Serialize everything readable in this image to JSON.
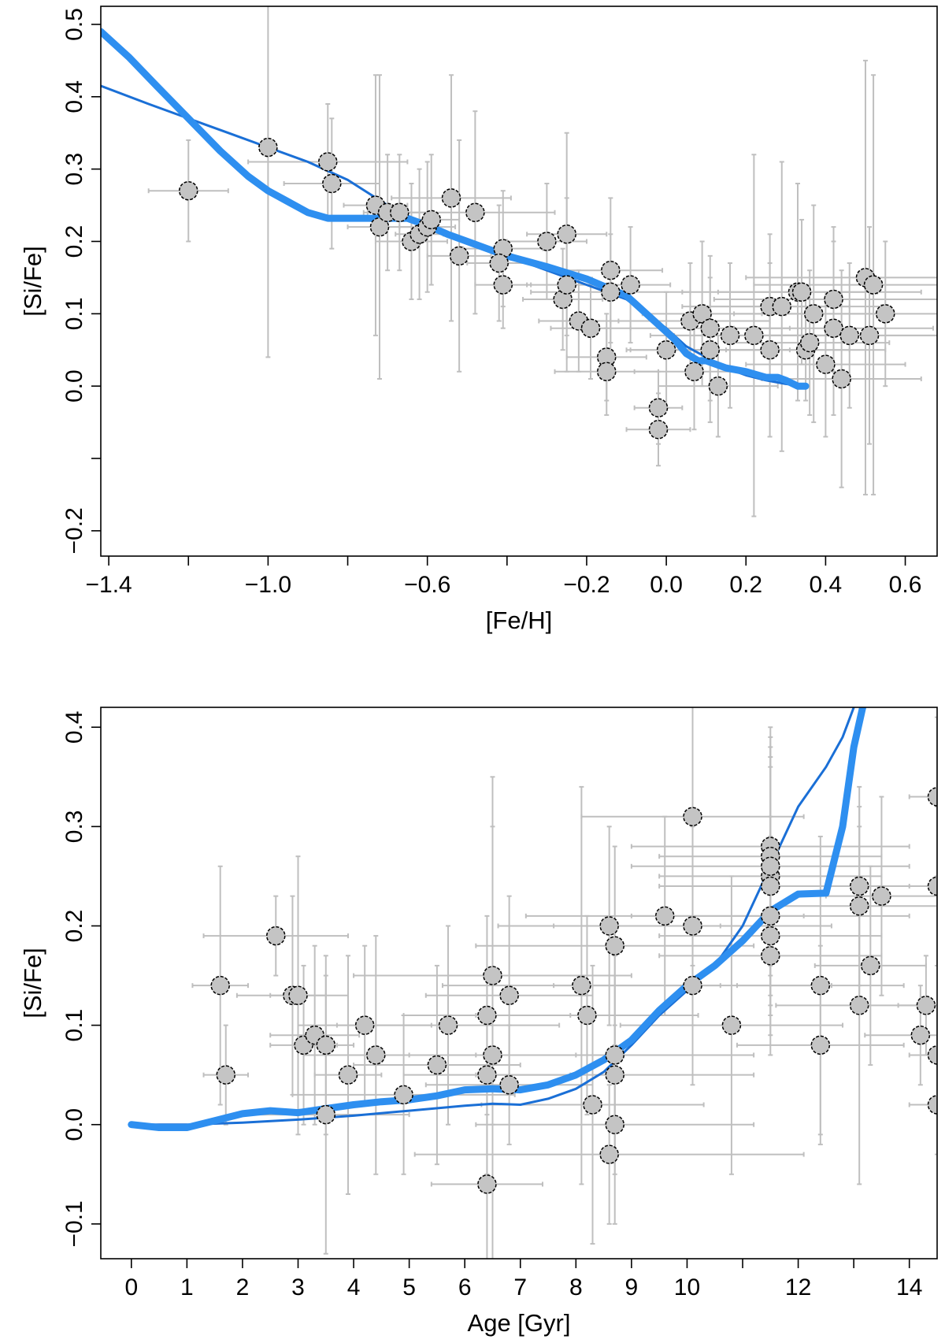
{
  "colors": {
    "thick_line": "#2e8ff0",
    "thin_line": "#1a6fd6",
    "errorbar": "#bfbfbf",
    "marker": "#c4c4c4"
  },
  "chart_data": [
    {
      "type": "scatter",
      "title": "",
      "xlabel": "[Fe/H]",
      "ylabel": "[Si/Fe]",
      "xlim": [
        -1.42,
        0.68
      ],
      "ylim": [
        -0.235,
        0.525
      ],
      "xticks": [
        -1.4,
        -1.0,
        -0.6,
        -0.2,
        0.0,
        0.2,
        0.4,
        0.6
      ],
      "xtick_labels": [
        "−1.4",
        "−1.0",
        "−0.6",
        "−0.2",
        "0.0",
        "0.2",
        "0.4",
        "0.6"
      ],
      "xminor": [
        -1.2,
        -0.8,
        -0.4
      ],
      "yticks": [
        0.5,
        0.4,
        0.3,
        0.2,
        0.1,
        0.0,
        -0.2
      ],
      "ytick_labels": [
        "0.5",
        "0.4",
        "0.3",
        "0.2",
        "0.1",
        "0.0",
        "−0.2"
      ],
      "yminor": [
        -0.1
      ],
      "points": [
        {
          "x": -1.2,
          "y": 0.27,
          "xerr": 0.1,
          "yerr": 0.07
        },
        {
          "x": -1.0,
          "y": 0.33,
          "xerr": 0.0,
          "yerr": 0.29
        },
        {
          "x": -0.85,
          "y": 0.31,
          "xerr": 0.2,
          "yerr": 0.08
        },
        {
          "x": -0.84,
          "y": 0.28,
          "xerr": 0.12,
          "yerr": 0.09
        },
        {
          "x": -0.73,
          "y": 0.25,
          "xerr": 0.08,
          "yerr": 0.18
        },
        {
          "x": -0.72,
          "y": 0.22,
          "xerr": 0.08,
          "yerr": 0.21
        },
        {
          "x": -0.7,
          "y": 0.24,
          "xerr": 0.06,
          "yerr": 0.08
        },
        {
          "x": -0.67,
          "y": 0.24,
          "xerr": 0.08,
          "yerr": 0.08
        },
        {
          "x": -0.64,
          "y": 0.2,
          "xerr": 0.09,
          "yerr": 0.08
        },
        {
          "x": -0.62,
          "y": 0.21,
          "xerr": 0.06,
          "yerr": 0.09
        },
        {
          "x": -0.6,
          "y": 0.22,
          "xerr": 0.07,
          "yerr": 0.09
        },
        {
          "x": -0.59,
          "y": 0.23,
          "xerr": 0.07,
          "yerr": 0.09
        },
        {
          "x": -0.54,
          "y": 0.26,
          "xerr": 0.15,
          "yerr": 0.17
        },
        {
          "x": -0.52,
          "y": 0.18,
          "xerr": 0.08,
          "yerr": 0.16
        },
        {
          "x": -0.48,
          "y": 0.24,
          "xerr": 0.2,
          "yerr": 0.14
        },
        {
          "x": -0.41,
          "y": 0.19,
          "xerr": 0.1,
          "yerr": 0.08
        },
        {
          "x": -0.42,
          "y": 0.17,
          "xerr": 0.08,
          "yerr": 0.08
        },
        {
          "x": -0.41,
          "y": 0.14,
          "xerr": 0.07,
          "yerr": 0.06
        },
        {
          "x": -0.3,
          "y": 0.2,
          "xerr": 0.1,
          "yerr": 0.08
        },
        {
          "x": -0.26,
          "y": 0.12,
          "xerr": 0.1,
          "yerr": 0.07
        },
        {
          "x": -0.25,
          "y": 0.14,
          "xerr": 0.1,
          "yerr": 0.12
        },
        {
          "x": -0.25,
          "y": 0.21,
          "xerr": 0.1,
          "yerr": 0.14
        },
        {
          "x": -0.22,
          "y": 0.09,
          "xerr": 0.1,
          "yerr": 0.07
        },
        {
          "x": -0.19,
          "y": 0.08,
          "xerr": 0.1,
          "yerr": 0.07
        },
        {
          "x": -0.14,
          "y": 0.16,
          "xerr": 0.13,
          "yerr": 0.1
        },
        {
          "x": -0.14,
          "y": 0.13,
          "xerr": 0.2,
          "yerr": 0.08
        },
        {
          "x": -0.15,
          "y": 0.04,
          "xerr": 0.1,
          "yerr": 0.06
        },
        {
          "x": -0.15,
          "y": 0.02,
          "xerr": 0.13,
          "yerr": 0.06
        },
        {
          "x": -0.09,
          "y": 0.14,
          "xerr": 0.1,
          "yerr": 0.08
        },
        {
          "x": -0.02,
          "y": -0.03,
          "xerr": 0.06,
          "yerr": 0.05
        },
        {
          "x": -0.02,
          "y": -0.06,
          "xerr": 0.08,
          "yerr": 0.05
        },
        {
          "x": 0.0,
          "y": 0.05,
          "xerr": 0.1,
          "yerr": 0.08
        },
        {
          "x": 0.06,
          "y": 0.09,
          "xerr": 0.2,
          "yerr": 0.08
        },
        {
          "x": 0.07,
          "y": 0.02,
          "xerr": 0.15,
          "yerr": 0.08
        },
        {
          "x": 0.09,
          "y": 0.1,
          "xerr": 0.15,
          "yerr": 0.1
        },
        {
          "x": 0.11,
          "y": 0.08,
          "xerr": 0.2,
          "yerr": 0.1
        },
        {
          "x": 0.11,
          "y": 0.05,
          "xerr": 0.2,
          "yerr": 0.1
        },
        {
          "x": 0.13,
          "y": 0.0,
          "xerr": 0.15,
          "yerr": 0.07
        },
        {
          "x": 0.16,
          "y": 0.07,
          "xerr": 0.2,
          "yerr": 0.1
        },
        {
          "x": 0.22,
          "y": 0.07,
          "xerr": 0.2,
          "yerr": 0.25
        },
        {
          "x": 0.26,
          "y": 0.11,
          "xerr": 0.2,
          "yerr": 0.1
        },
        {
          "x": 0.26,
          "y": 0.05,
          "xerr": 0.2,
          "yerr": 0.12
        },
        {
          "x": 0.29,
          "y": 0.11,
          "xerr": 0.25,
          "yerr": 0.2
        },
        {
          "x": 0.33,
          "y": 0.13,
          "xerr": 0.2,
          "yerr": 0.15
        },
        {
          "x": 0.34,
          "y": 0.13,
          "xerr": 0.3,
          "yerr": 0.1
        },
        {
          "x": 0.35,
          "y": 0.05,
          "xerr": 0.2,
          "yerr": 0.07
        },
        {
          "x": 0.36,
          "y": 0.06,
          "xerr": 0.2,
          "yerr": 0.1
        },
        {
          "x": 0.37,
          "y": 0.1,
          "xerr": 0.2,
          "yerr": 0.15
        },
        {
          "x": 0.4,
          "y": 0.03,
          "xerr": 0.2,
          "yerr": 0.1
        },
        {
          "x": 0.42,
          "y": 0.12,
          "xerr": 0.3,
          "yerr": 0.1
        },
        {
          "x": 0.42,
          "y": 0.08,
          "xerr": 0.25,
          "yerr": 0.12
        },
        {
          "x": 0.44,
          "y": 0.01,
          "xerr": 0.2,
          "yerr": 0.15
        },
        {
          "x": 0.46,
          "y": 0.07,
          "xerr": 0.3,
          "yerr": 0.1
        },
        {
          "x": 0.5,
          "y": 0.15,
          "xerr": 0.3,
          "yerr": 0.3
        },
        {
          "x": 0.51,
          "y": 0.07,
          "xerr": 0.3,
          "yerr": 0.15
        },
        {
          "x": 0.52,
          "y": 0.14,
          "xerr": 0.3,
          "yerr": 0.29
        },
        {
          "x": 0.55,
          "y": 0.1,
          "xerr": 0.25,
          "yerr": 0.1
        }
      ],
      "series": [
        {
          "name": "model-thin",
          "style": "thin",
          "x": [
            -1.42,
            -1.3,
            -1.2,
            -1.1,
            -1.0,
            -0.9,
            -0.8,
            -0.7,
            -0.6,
            -0.5,
            -0.4,
            -0.3,
            -0.2,
            -0.1,
            -0.05,
            0.0,
            0.05,
            0.1,
            0.15,
            0.2,
            0.25,
            0.3,
            0.35
          ],
          "y": [
            0.415,
            0.39,
            0.37,
            0.35,
            0.33,
            0.31,
            0.285,
            0.25,
            0.22,
            0.2,
            0.18,
            0.16,
            0.14,
            0.12,
            0.1,
            0.08,
            0.055,
            0.04,
            0.025,
            0.015,
            0.008,
            0.003,
            0.0
          ]
        },
        {
          "name": "model-thick",
          "style": "thick",
          "x": [
            -1.42,
            -1.35,
            -1.28,
            -1.2,
            -1.12,
            -1.05,
            -1.0,
            -0.95,
            -0.9,
            -0.85,
            -0.8,
            -0.75,
            -0.7,
            -0.65,
            -0.6,
            -0.55,
            -0.5,
            -0.45,
            -0.4,
            -0.3,
            -0.2,
            -0.1,
            -0.05,
            0.0,
            0.02,
            0.05,
            0.08,
            0.1,
            0.15,
            0.2,
            0.25,
            0.28,
            0.3,
            0.33,
            0.35
          ],
          "y": [
            0.49,
            0.455,
            0.415,
            0.37,
            0.325,
            0.29,
            0.27,
            0.255,
            0.24,
            0.232,
            0.232,
            0.232,
            0.232,
            0.232,
            0.222,
            0.21,
            0.2,
            0.19,
            0.18,
            0.165,
            0.148,
            0.125,
            0.1,
            0.075,
            0.065,
            0.045,
            0.035,
            0.035,
            0.025,
            0.02,
            0.012,
            0.012,
            0.008,
            0.0,
            0.0
          ]
        }
      ]
    },
    {
      "type": "scatter",
      "title": "",
      "xlabel": "Age [Gyr]",
      "ylabel": "[Si/Fe]",
      "xlim": [
        -0.55,
        14.5
      ],
      "ylim": [
        -0.135,
        0.42
      ],
      "xticks": [
        0,
        1,
        2,
        3,
        4,
        5,
        6,
        7,
        8,
        9,
        10,
        12,
        14
      ],
      "xtick_labels": [
        "0",
        "1",
        "2",
        "3",
        "4",
        "5",
        "6",
        "7",
        "8",
        "9",
        "10",
        "12",
        "14"
      ],
      "xminor": [
        11,
        13
      ],
      "yticks": [
        0.4,
        0.3,
        0.2,
        0.1,
        0.0,
        -0.1
      ],
      "ytick_labels": [
        "0.4",
        "0.3",
        "0.2",
        "0.1",
        "0.0",
        "−0.1"
      ],
      "yminor": [],
      "points": [
        {
          "x": 1.6,
          "y": 0.14,
          "xerr": 0.5,
          "yerr": 0.12
        },
        {
          "x": 1.7,
          "y": 0.05,
          "xerr": 0.4,
          "yerr": 0.05
        },
        {
          "x": 2.6,
          "y": 0.19,
          "xerr": 1.3,
          "yerr": 0.04
        },
        {
          "x": 2.9,
          "y": 0.13,
          "xerr": 1.0,
          "yerr": 0.1
        },
        {
          "x": 3.0,
          "y": 0.13,
          "xerr": 0.5,
          "yerr": 0.14
        },
        {
          "x": 3.1,
          "y": 0.08,
          "xerr": 0.6,
          "yerr": 0.08
        },
        {
          "x": 3.3,
          "y": 0.09,
          "xerr": 0.8,
          "yerr": 0.09
        },
        {
          "x": 3.5,
          "y": 0.08,
          "xerr": 0.5,
          "yerr": 0.09
        },
        {
          "x": 3.5,
          "y": 0.01,
          "xerr": 1.5,
          "yerr": 0.14
        },
        {
          "x": 3.9,
          "y": 0.05,
          "xerr": 0.6,
          "yerr": 0.12
        },
        {
          "x": 4.2,
          "y": 0.1,
          "xerr": 1.2,
          "yerr": 0.08
        },
        {
          "x": 4.4,
          "y": 0.07,
          "xerr": 1.3,
          "yerr": 0.12
        },
        {
          "x": 4.9,
          "y": 0.03,
          "xerr": 2.0,
          "yerr": 0.08
        },
        {
          "x": 5.5,
          "y": 0.06,
          "xerr": 1.5,
          "yerr": 0.1
        },
        {
          "x": 5.7,
          "y": 0.1,
          "xerr": 2.0,
          "yerr": 0.1
        },
        {
          "x": 6.4,
          "y": 0.05,
          "xerr": 1.5,
          "yerr": 0.1
        },
        {
          "x": 6.4,
          "y": 0.11,
          "xerr": 1.5,
          "yerr": 0.1
        },
        {
          "x": 6.4,
          "y": -0.06,
          "xerr": 1.0,
          "yerr": 0.08
        },
        {
          "x": 6.5,
          "y": 0.15,
          "xerr": 2.5,
          "yerr": 0.15
        },
        {
          "x": 6.5,
          "y": 0.07,
          "xerr": 1.5,
          "yerr": 0.28
        },
        {
          "x": 6.8,
          "y": 0.13,
          "xerr": 1.5,
          "yerr": 0.1
        },
        {
          "x": 6.8,
          "y": 0.04,
          "xerr": 1.5,
          "yerr": 0.06
        },
        {
          "x": 8.1,
          "y": 0.14,
          "xerr": 2.5,
          "yerr": 0.2
        },
        {
          "x": 8.2,
          "y": 0.11,
          "xerr": 2.0,
          "yerr": 0.1
        },
        {
          "x": 8.3,
          "y": 0.02,
          "xerr": 2.0,
          "yerr": 0.14
        },
        {
          "x": 8.6,
          "y": 0.2,
          "xerr": 2.0,
          "yerr": 0.1
        },
        {
          "x": 8.6,
          "y": -0.03,
          "xerr": 3.5,
          "yerr": 0.07
        },
        {
          "x": 8.7,
          "y": 0.18,
          "xerr": 2.5,
          "yerr": 0.1
        },
        {
          "x": 8.7,
          "y": 0.07,
          "xerr": 2.5,
          "yerr": 0.1
        },
        {
          "x": 8.7,
          "y": 0.05,
          "xerr": 2.5,
          "yerr": 0.1
        },
        {
          "x": 8.7,
          "y": 0.0,
          "xerr": 2.5,
          "yerr": 0.1
        },
        {
          "x": 9.6,
          "y": 0.21,
          "xerr": 2.5,
          "yerr": 0.1
        },
        {
          "x": 10.1,
          "y": 0.31,
          "xerr": 2.0,
          "yerr": 0.15
        },
        {
          "x": 10.1,
          "y": 0.2,
          "xerr": 2.5,
          "yerr": 0.1
        },
        {
          "x": 10.1,
          "y": 0.14,
          "xerr": 2.5,
          "yerr": 0.1
        },
        {
          "x": 10.8,
          "y": 0.1,
          "xerr": 2.0,
          "yerr": 0.15
        },
        {
          "x": 11.5,
          "y": 0.28,
          "xerr": 2.5,
          "yerr": 0.12
        },
        {
          "x": 11.5,
          "y": 0.27,
          "xerr": 2.0,
          "yerr": 0.12
        },
        {
          "x": 11.5,
          "y": 0.25,
          "xerr": 2.0,
          "yerr": 0.12
        },
        {
          "x": 11.5,
          "y": 0.26,
          "xerr": 2.5,
          "yerr": 0.12
        },
        {
          "x": 11.5,
          "y": 0.24,
          "xerr": 2.0,
          "yerr": 0.12
        },
        {
          "x": 11.5,
          "y": 0.21,
          "xerr": 2.5,
          "yerr": 0.1
        },
        {
          "x": 11.5,
          "y": 0.19,
          "xerr": 2.0,
          "yerr": 0.1
        },
        {
          "x": 11.5,
          "y": 0.17,
          "xerr": 2.0,
          "yerr": 0.1
        },
        {
          "x": 12.4,
          "y": 0.14,
          "xerr": 1.5,
          "yerr": 0.15
        },
        {
          "x": 12.4,
          "y": 0.08,
          "xerr": 1.5,
          "yerr": 0.1
        },
        {
          "x": 13.1,
          "y": 0.24,
          "xerr": 1.5,
          "yerr": 0.1
        },
        {
          "x": 13.1,
          "y": 0.22,
          "xerr": 1.5,
          "yerr": 0.1
        },
        {
          "x": 13.1,
          "y": 0.12,
          "xerr": 1.5,
          "yerr": 0.18
        },
        {
          "x": 13.3,
          "y": 0.16,
          "xerr": 1.0,
          "yerr": 0.1
        },
        {
          "x": 13.5,
          "y": 0.23,
          "xerr": 1.0,
          "yerr": 0.1
        },
        {
          "x": 14.2,
          "y": 0.09,
          "xerr": 1.0,
          "yerr": 0.05
        },
        {
          "x": 14.3,
          "y": 0.12,
          "xerr": 0.5,
          "yerr": 0.05
        },
        {
          "x": 14.5,
          "y": 0.33,
          "xerr": 0.5,
          "yerr": 0.08
        },
        {
          "x": 14.5,
          "y": 0.24,
          "xerr": 0.5,
          "yerr": 0.08
        },
        {
          "x": 14.5,
          "y": 0.07,
          "xerr": 0.5,
          "yerr": 0.05
        },
        {
          "x": 14.5,
          "y": 0.02,
          "xerr": 0.5,
          "yerr": 0.05
        }
      ],
      "series": [
        {
          "name": "model-thin",
          "style": "thin",
          "x": [
            0.0,
            1.0,
            2.0,
            3.0,
            4.0,
            5.0,
            6.0,
            6.5,
            7.0,
            7.5,
            8.0,
            8.5,
            9.0,
            9.5,
            10.0,
            10.5,
            11.0,
            11.5,
            12.0,
            12.5,
            12.8,
            13.0,
            13.1
          ],
          "y": [
            0.0,
            0.0,
            0.002,
            0.005,
            0.009,
            0.014,
            0.019,
            0.021,
            0.02,
            0.026,
            0.036,
            0.053,
            0.08,
            0.11,
            0.135,
            0.16,
            0.2,
            0.26,
            0.32,
            0.36,
            0.39,
            0.42,
            0.43
          ]
        },
        {
          "name": "model-thick",
          "style": "thick",
          "x": [
            0.0,
            0.5,
            1.0,
            1.5,
            2.0,
            2.5,
            3.0,
            3.5,
            4.0,
            4.5,
            5.0,
            5.5,
            6.0,
            6.5,
            7.0,
            7.5,
            8.0,
            8.5,
            9.0,
            9.5,
            10.0,
            10.5,
            11.0,
            11.5,
            12.0,
            12.5,
            12.8,
            13.0,
            13.2
          ],
          "y": [
            0.0,
            -0.003,
            -0.003,
            0.004,
            0.011,
            0.014,
            0.012,
            0.016,
            0.02,
            0.023,
            0.025,
            0.029,
            0.035,
            0.036,
            0.035,
            0.04,
            0.05,
            0.065,
            0.085,
            0.115,
            0.14,
            0.16,
            0.185,
            0.215,
            0.232,
            0.233,
            0.3,
            0.38,
            0.43
          ]
        }
      ]
    }
  ]
}
